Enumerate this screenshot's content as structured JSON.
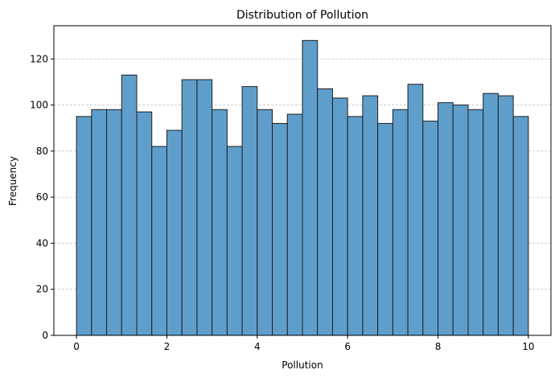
{
  "chart_data": {
    "type": "bar",
    "subtype": "histogram",
    "title": "Distribution of Pollution",
    "xlabel": "Pollution",
    "ylabel": "Frequency",
    "xlim": [
      -0.5,
      10.5
    ],
    "ylim": [
      0,
      134.4
    ],
    "xticks": [
      0,
      2,
      4,
      6,
      8,
      10
    ],
    "yticks": [
      0,
      20,
      40,
      60,
      80,
      100,
      120
    ],
    "grid": "y-dashed",
    "bin_range": [
      0,
      10
    ],
    "bin_count": 30,
    "values": [
      95,
      98,
      98,
      113,
      97,
      82,
      89,
      111,
      111,
      98,
      82,
      108,
      98,
      92,
      96,
      128,
      107,
      103,
      95,
      104,
      92,
      98,
      109,
      93,
      101,
      100,
      98,
      105,
      104,
      95
    ],
    "bar_color": "#5f9ecb",
    "edge_color": "#1f1f1f"
  }
}
